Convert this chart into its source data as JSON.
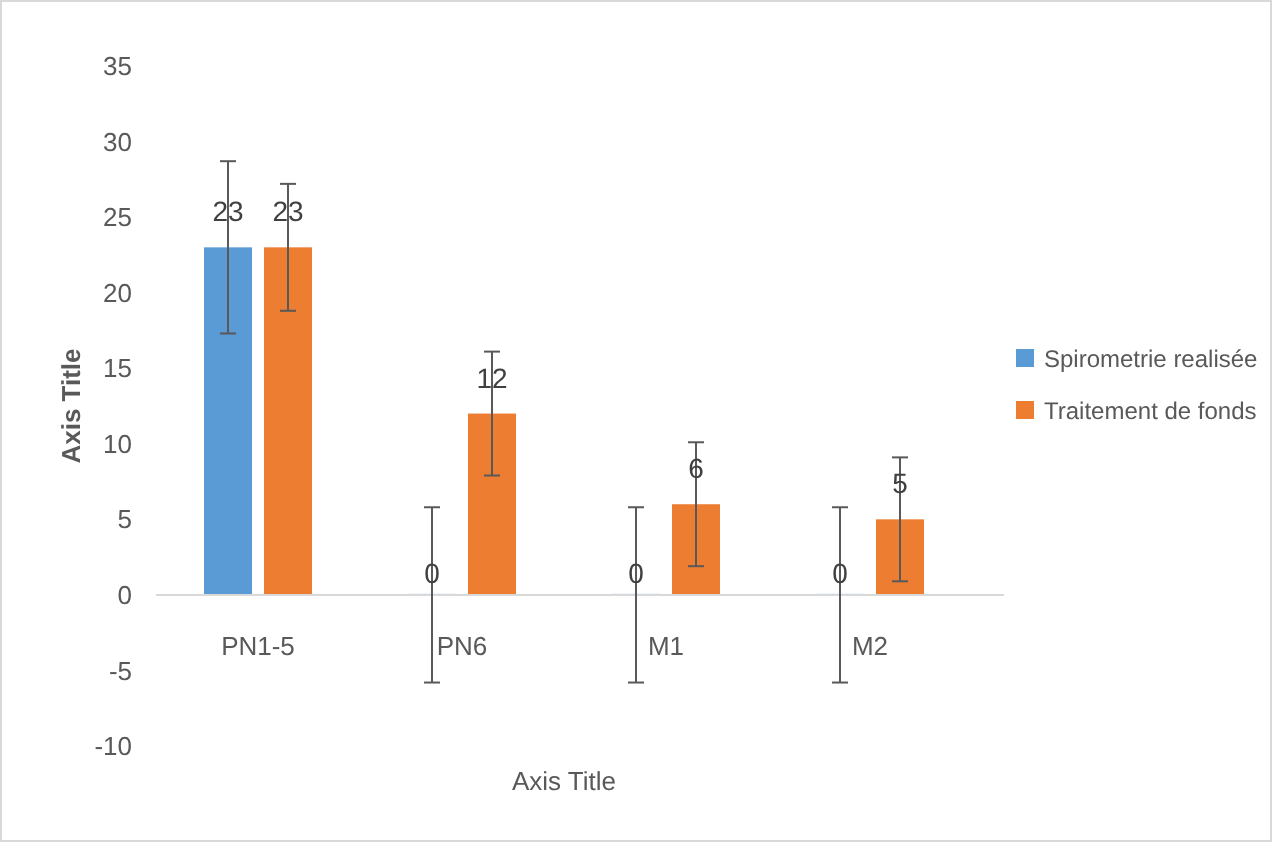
{
  "chart_data": {
    "type": "bar",
    "xlabel": "Axis Title",
    "ylabel": "Axis Title",
    "categories": [
      "PN1-5",
      "PN6",
      "M1",
      "M2"
    ],
    "series": [
      {
        "name": "Spirometrie realisée",
        "color": "#5b9bd5",
        "values": [
          23,
          0,
          0,
          0
        ],
        "errors": [
          5.7,
          5.8,
          5.8,
          5.8
        ]
      },
      {
        "name": "Traitement de fonds",
        "color": "#ed7d31",
        "values": [
          23,
          12,
          6,
          5
        ],
        "errors": [
          4.2,
          4.1,
          4.1,
          4.1
        ]
      }
    ],
    "ylim": [
      -10,
      35
    ],
    "yticks": [
      -10,
      -5,
      0,
      5,
      10,
      15,
      20,
      25,
      30,
      35
    ],
    "grid": false,
    "legend": "right",
    "data_labels": true
  }
}
